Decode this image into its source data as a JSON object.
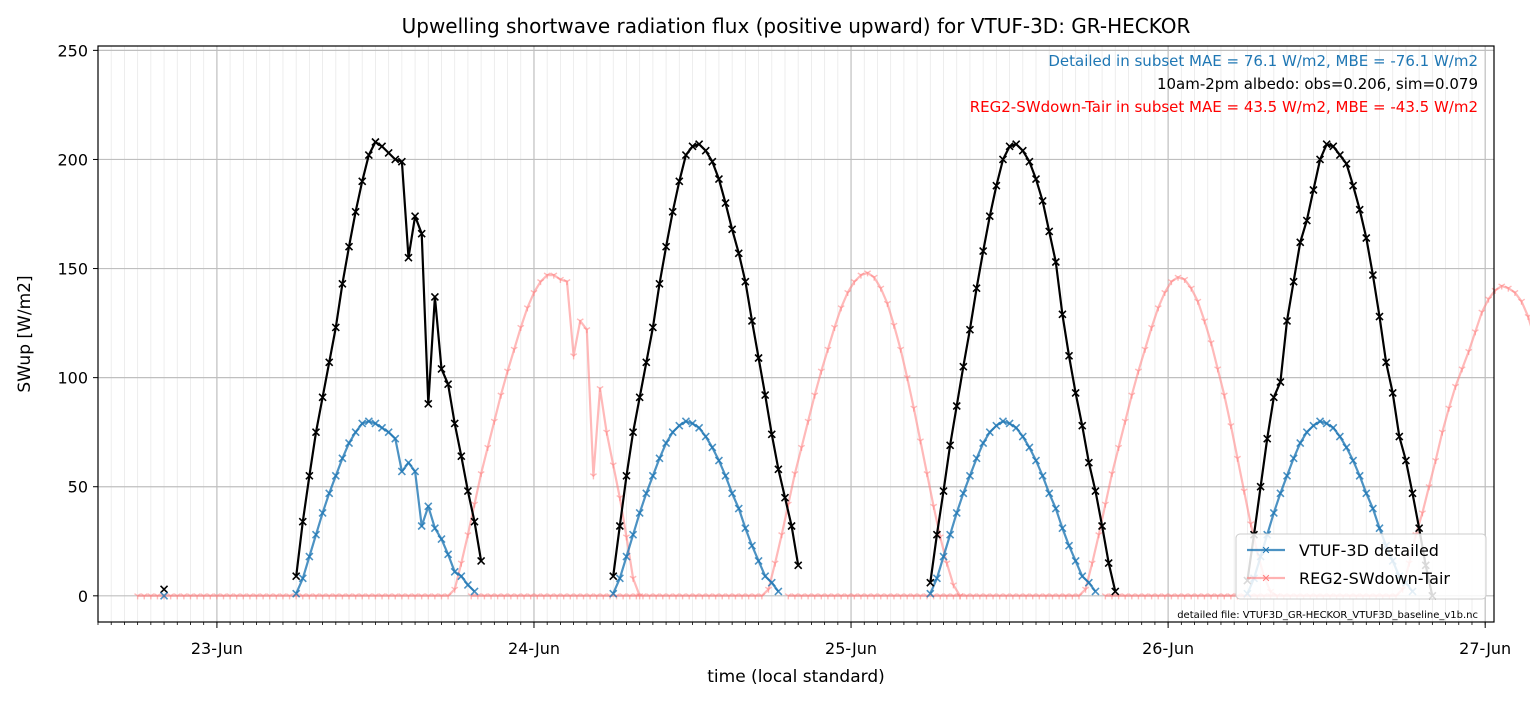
{
  "chart_data": {
    "type": "line",
    "title": "Upwelling shortwave radiation flux (positive upward) for VTUF-3D: GR-HECKOR",
    "xlabel": "time (local standard)",
    "ylabel": "SWup [W/m2]",
    "ylim": [
      -12,
      252
    ],
    "xlim": [
      "2023-06-22T15:00",
      "2023-06-27T00:40"
    ],
    "yticks": [
      0,
      50,
      100,
      150,
      200,
      250
    ],
    "xticks": [
      "23-Jun",
      "24-Jun",
      "25-Jun",
      "26-Jun",
      "27-Jun"
    ],
    "grid": true,
    "legend_position": "lower right",
    "annotations": {
      "mae_detailed": "Detailed in subset MAE = 76.1 W/m2, MBE = -76.1 W/m2",
      "albedo": "10am-2pm albedo: obs=0.206, sim=0.079",
      "mae_reg2": "REG2-SWdown-Tair in subset MAE = 43.5 W/m2, MBE = -43.5 W/m2",
      "footnote": "detailed file: VTUF3D_GR-HECKOR_VTUF3D_baseline_v1b.nc"
    },
    "colors": {
      "observed": "#000000",
      "detailed": "#1f77b4",
      "reg2": "#ff7f7f",
      "annot_detailed": "#1f77b4",
      "annot_reg2": "#ff0000"
    },
    "series": [
      {
        "name": "VTUF-3D detailed",
        "days": [
          {
            "start": "06-23 06:00",
            "values": [
              1,
              8,
              18,
              28,
              38,
              47,
              55,
              63,
              70,
              75,
              79,
              80,
              79,
              77,
              75,
              72,
              57,
              61,
              57,
              32,
              41,
              31,
              26,
              19,
              11,
              9,
              5,
              2
            ]
          },
          {
            "start": "06-24 06:00",
            "values": [
              1,
              8,
              18,
              28,
              38,
              47,
              55,
              63,
              70,
              75,
              78,
              80,
              79,
              77,
              73,
              68,
              62,
              55,
              47,
              40,
              31,
              23,
              16,
              9,
              6,
              2
            ]
          },
          {
            "start": "06-25 06:00",
            "values": [
              1,
              8,
              18,
              28,
              38,
              47,
              55,
              63,
              70,
              75,
              78,
              80,
              79,
              77,
              73,
              68,
              62,
              55,
              47,
              40,
              31,
              23,
              16,
              9,
              6,
              2
            ]
          },
          {
            "start": "06-26 06:00",
            "values": [
              1,
              8,
              18,
              28,
              38,
              47,
              55,
              63,
              70,
              75,
              78,
              80,
              79,
              77,
              73,
              68,
              62,
              55,
              47,
              40,
              31,
              23,
              16,
              9,
              6,
              2
            ]
          }
        ]
      },
      {
        "name": "REG2-SWdown-Tair",
        "days": [
          {
            "start": "06-22 18:00",
            "values": [
              0,
              0,
              0,
              0,
              0,
              0,
              0,
              0,
              0,
              0,
              0,
              0,
              0,
              0,
              0,
              0,
              0,
              0,
              0,
              0,
              0,
              0,
              0,
              0,
              0,
              0,
              0,
              0,
              0,
              0,
              0,
              0,
              0,
              0,
              0,
              0,
              0,
              0,
              0,
              0,
              0,
              0,
              0,
              0,
              0,
              0,
              0,
              0,
              3,
              15,
              28,
              42,
              56,
              68,
              80,
              92,
              103,
              113,
              123,
              132,
              139,
              144,
              147,
              147,
              145,
              144,
              110,
              126,
              122,
              55,
              95,
              75,
              60,
              45,
              27,
              8,
              0
            ]
          },
          {
            "start": "06-23 19:15",
            "values": [
              0,
              0,
              0,
              0,
              0,
              0,
              0,
              0,
              0,
              0,
              0,
              0,
              0,
              0,
              0,
              0,
              0,
              0,
              0,
              0,
              0,
              0,
              0,
              0,
              0,
              0,
              0,
              0,
              0,
              0,
              0,
              0,
              0,
              0,
              0,
              0,
              0,
              0,
              0,
              0,
              0,
              0,
              0,
              0,
              0,
              3,
              15,
              28,
              42,
              56,
              68,
              80,
              92,
              103,
              113,
              123,
              132,
              139,
              144,
              147,
              148,
              146,
              141,
              134,
              124,
              113,
              100,
              86,
              71,
              56,
              41,
              27,
              15,
              5,
              0
            ]
          },
          {
            "start": "06-24 19:15",
            "values": [
              0,
              0,
              0,
              0,
              0,
              0,
              0,
              0,
              0,
              0,
              0,
              0,
              0,
              0,
              0,
              0,
              0,
              0,
              0,
              0,
              0,
              0,
              0,
              0,
              0,
              0,
              0,
              0,
              0,
              0,
              0,
              0,
              0,
              0,
              0,
              0,
              0,
              0,
              0,
              0,
              0,
              0,
              0,
              0,
              0,
              3,
              15,
              28,
              42,
              56,
              68,
              80,
              92,
              103,
              113,
              123,
              132,
              139,
              144,
              146,
              145,
              141,
              135,
              126,
              116,
              104,
              92,
              78,
              63,
              48,
              33,
              20,
              9,
              2,
              0
            ]
          },
          {
            "start": "06-25 19:15",
            "values": [
              0,
              0,
              0,
              0,
              0,
              0,
              0,
              0,
              0,
              0,
              0,
              0,
              0,
              0,
              0,
              0,
              0,
              0,
              0,
              0,
              0,
              0,
              0,
              0,
              0,
              0,
              0,
              0,
              0,
              0,
              0,
              0,
              0,
              0,
              0,
              0,
              0,
              0,
              0,
              0,
              0,
              0,
              0,
              0,
              0,
              3,
              15,
              28,
              38,
              50,
              62,
              75,
              86,
              96,
              104,
              112,
              121,
              130,
              136,
              140,
              142,
              141,
              139,
              135,
              128,
              118,
              106,
              93,
              79,
              64,
              48,
              33,
              20,
              9,
              3,
              0
            ]
          }
        ]
      },
      {
        "name": "Observed",
        "days": [
          {
            "start": "06-23 06:00",
            "values": [
              9,
              34,
              55,
              75,
              91,
              107,
              123,
              143,
              160,
              176,
              190,
              202,
              208,
              206,
              203,
              200,
              199,
              155,
              174,
              166,
              88,
              137,
              104,
              97,
              79,
              64,
              48,
              34,
              16
            ]
          },
          {
            "start": "06-24 06:00",
            "values": [
              9,
              32,
              55,
              75,
              91,
              107,
              123,
              143,
              160,
              176,
              190,
              202,
              206,
              207,
              204,
              199,
              191,
              180,
              168,
              157,
              144,
              126,
              109,
              92,
              74,
              58,
              45,
              32,
              14
            ]
          },
          {
            "start": "06-25 06:00",
            "values": [
              6,
              28,
              48,
              69,
              87,
              105,
              122,
              141,
              158,
              174,
              188,
              200,
              206,
              207,
              204,
              199,
              191,
              181,
              167,
              153,
              129,
              110,
              93,
              78,
              61,
              48,
              32,
              15,
              2
            ]
          },
          {
            "start": "06-26 06:00",
            "values": [
              7,
              28,
              50,
              72,
              91,
              98,
              126,
              144,
              162,
              172,
              186,
              200,
              207,
              206,
              202,
              198,
              188,
              177,
              164,
              147,
              128,
              107,
              93,
              73,
              62,
              47,
              31,
              14,
              0
            ]
          }
        ]
      }
    ],
    "lone_points": [
      {
        "series": "Observed",
        "x": "06-22 20:00",
        "y": 3
      },
      {
        "series": "VTUF-3D detailed",
        "x": "06-22 20:00",
        "y": 0
      }
    ]
  }
}
